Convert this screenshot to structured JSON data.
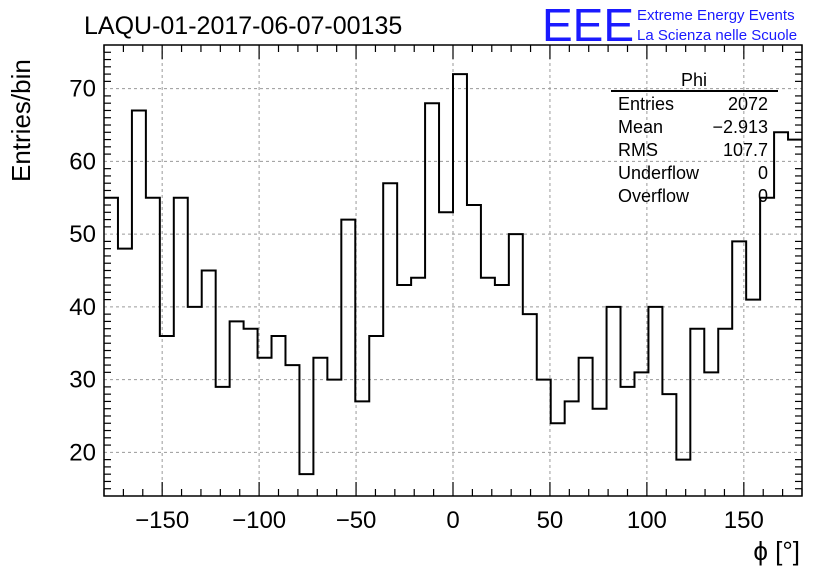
{
  "colors": {
    "line": "#000000",
    "grid": "#9a9a9a",
    "logo": "#1a1aff",
    "background": "#ffffff"
  },
  "logo": {
    "mark": "EEE",
    "line1": "Extreme Energy Events",
    "line2": "La Scienza nelle Scuole"
  },
  "chart_data": {
    "type": "histogram",
    "title": "LAQU-01-2017-06-07-00135",
    "xlabel": "ϕ [°]",
    "ylabel": "Entries/bin",
    "xlim": [
      -180,
      180
    ],
    "ylim": [
      14,
      76
    ],
    "grid": true,
    "bin_width": 7.2,
    "x_ticks": [
      -150,
      -100,
      -50,
      0,
      50,
      100,
      150
    ],
    "x_tick_labels": [
      "−150",
      "−100",
      "−50",
      "0",
      "50",
      "100",
      "150"
    ],
    "y_ticks": [
      20,
      30,
      40,
      50,
      60,
      70
    ],
    "y_tick_labels": [
      "20",
      "30",
      "40",
      "50",
      "60",
      "70"
    ],
    "values": [
      55,
      48,
      67,
      55,
      36,
      55,
      40,
      45,
      29,
      38,
      37,
      33,
      36,
      32,
      17,
      33,
      30,
      52,
      27,
      36,
      57,
      43,
      44,
      68,
      53,
      72,
      54,
      44,
      43,
      50,
      39,
      30,
      24,
      27,
      33,
      26,
      40,
      29,
      31,
      40,
      28,
      19,
      37,
      31,
      37,
      49,
      41,
      55,
      64,
      63
    ],
    "stats_box": {
      "title": "Phi",
      "rows": [
        {
          "label": "Entries",
          "value": "2072"
        },
        {
          "label": "Mean",
          "value": "−2.913"
        },
        {
          "label": "RMS",
          "value": "107.7"
        },
        {
          "label": "Underflow",
          "value": "0"
        },
        {
          "label": "Overflow",
          "value": "0"
        }
      ]
    }
  }
}
